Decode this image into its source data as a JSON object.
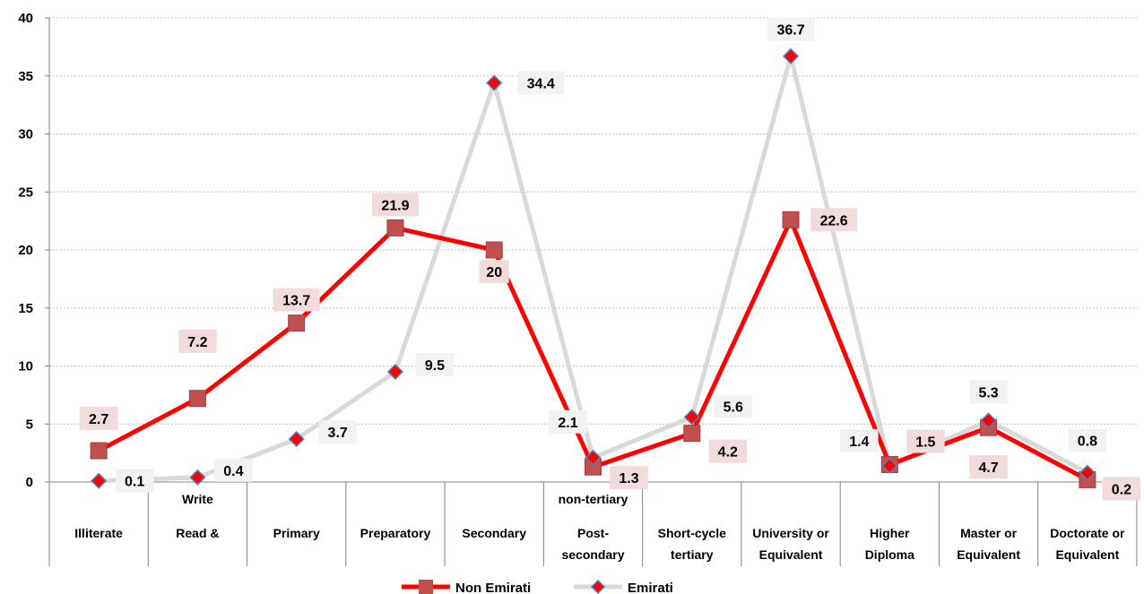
{
  "chart_data": {
    "type": "line",
    "categories": [
      [
        "Illiterate"
      ],
      [
        "Write",
        "Read &"
      ],
      [
        "Primary"
      ],
      [
        "Preparatory"
      ],
      [
        "Secondary"
      ],
      [
        "non-tertiary",
        "Post-",
        "secondary"
      ],
      [
        "Short-cycle",
        "tertiary"
      ],
      [
        "University  or",
        "Equivalent"
      ],
      [
        "Higher",
        "Diploma"
      ],
      [
        "Master or",
        "Equivalent"
      ],
      [
        "Doctorate  or",
        "Equivalent"
      ]
    ],
    "series": [
      {
        "name": "Non Emirati",
        "color": "#ff0000",
        "marker": "square",
        "marker_color": "#c0504d",
        "label_bg": "#f2dcdb",
        "values": [
          2.7,
          7.2,
          13.7,
          21.9,
          20,
          1.3,
          4.2,
          22.6,
          1.5,
          4.7,
          0.2
        ]
      },
      {
        "name": "Emirati",
        "color": "#d9d9d9",
        "marker": "diamond",
        "marker_color": "#ff0000",
        "marker_border": "#4f81bd",
        "label_bg": "#f2f2f2",
        "values": [
          0.1,
          0.4,
          3.7,
          9.5,
          34.4,
          2.1,
          5.6,
          36.7,
          1.4,
          5.3,
          0.8
        ]
      }
    ],
    "ylim": [
      0,
      40
    ],
    "yticks": [
      0,
      5,
      10,
      15,
      20,
      25,
      30,
      35,
      40
    ],
    "grid": true,
    "legend": "bottom"
  }
}
